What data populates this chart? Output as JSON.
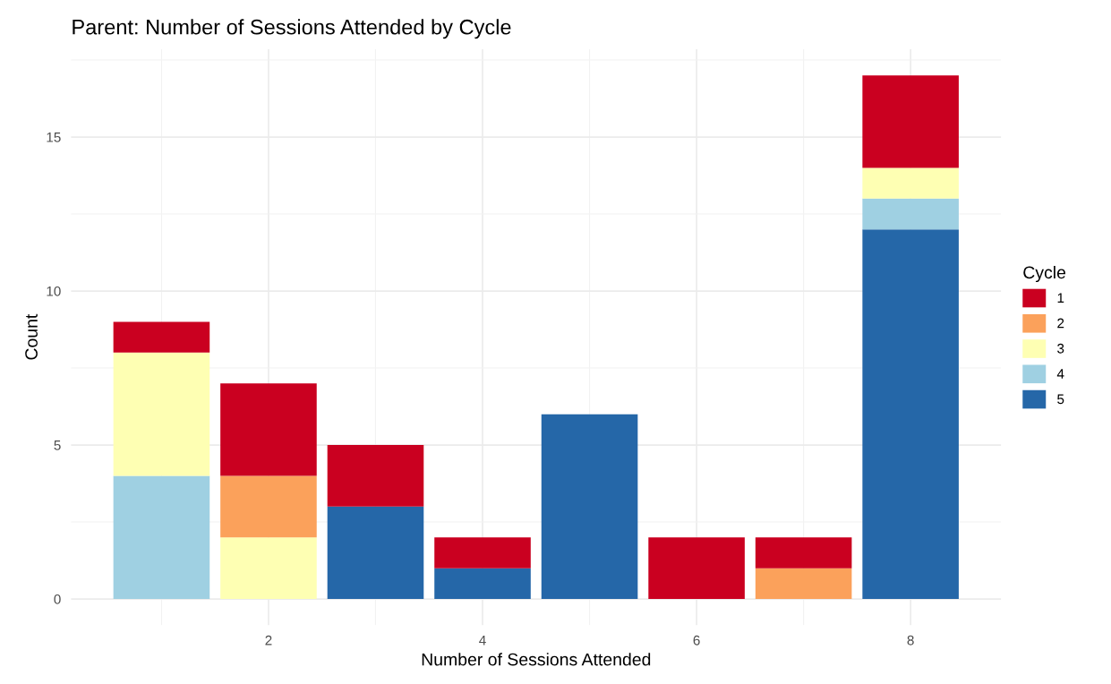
{
  "chart_data": {
    "type": "bar",
    "title": "Parent: Number of Sessions Attended by Cycle",
    "xlabel": "Number of Sessions Attended",
    "ylabel": "Count",
    "legend_title": "Cycle",
    "x": [
      1,
      2,
      3,
      4,
      5,
      6,
      7,
      8
    ],
    "stacked": true,
    "series": [
      {
        "name": "5",
        "color": "#2567a8",
        "values": [
          0,
          0,
          3,
          1,
          6,
          0,
          0,
          12
        ]
      },
      {
        "name": "4",
        "color": "#9fd0e2",
        "values": [
          4,
          0,
          0,
          0,
          0,
          0,
          0,
          1
        ]
      },
      {
        "name": "3",
        "color": "#feffb3",
        "values": [
          4,
          2,
          0,
          0,
          0,
          0,
          0,
          1
        ]
      },
      {
        "name": "2",
        "color": "#fba15b",
        "values": [
          0,
          2,
          0,
          0,
          0,
          0,
          1,
          0
        ]
      },
      {
        "name": "1",
        "color": "#ca0020",
        "values": [
          1,
          3,
          2,
          1,
          0,
          2,
          1,
          3
        ]
      }
    ],
    "xlim": [
      0.155,
      8.845
    ],
    "ylim": [
      -0.85,
      17.85
    ],
    "xticks": [
      2,
      4,
      6,
      8
    ],
    "yticks": [
      0,
      5,
      10,
      15
    ],
    "grid": true,
    "legend": "right"
  }
}
